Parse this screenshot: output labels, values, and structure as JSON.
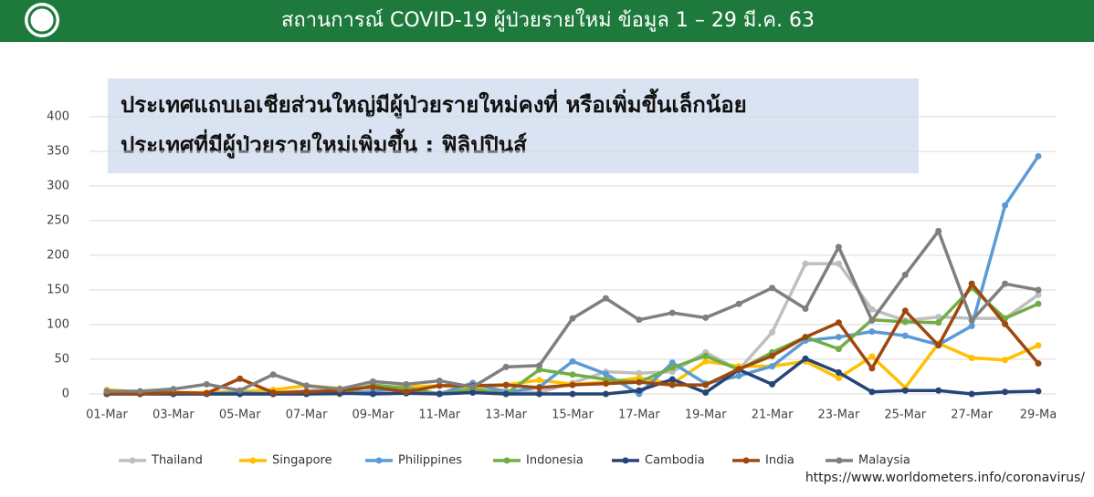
{
  "chart_data": {
    "type": "line",
    "title": "สถานการณ์ COVID-19 ผู้ป่วยรายใหม่ ข้อมูล 1 – 29 มี.ค. 63",
    "annotation": [
      "ประเทศแถบเอเชียส่วนใหญ่มีผู้ป่วยรายใหม่คงที่ หรือเพิ่มขึ้นเล็กน้อย",
      "ประเทศที่มีผู้ป่วยรายใหม่เพิ่มขึ้น : ฟิลิปปินส์"
    ],
    "source": "https://www.worldometers.info/coronavirus/",
    "categories": [
      "01-Mar",
      null,
      "03-Mar",
      null,
      "05-Mar",
      null,
      "07-Mar",
      null,
      "09-Mar",
      null,
      "11-Mar",
      null,
      "13-Mar",
      null,
      "15-Mar",
      null,
      "17-Mar",
      null,
      "19-Mar",
      null,
      "21-Mar",
      null,
      "23-Mar",
      null,
      "25-Mar",
      null,
      "27-Mar",
      null,
      "29-Ma"
    ],
    "ylim": [
      0,
      400
    ],
    "yticks": [
      0,
      50,
      100,
      150,
      200,
      250,
      300,
      350,
      400
    ],
    "grid": true,
    "legend": "bottom",
    "series": [
      {
        "name": "Thailand",
        "color": "#bfbfbf",
        "values": [
          5,
          3,
          2,
          1,
          1,
          1,
          5,
          7,
          1,
          3,
          1,
          11,
          5,
          2,
          16,
          32,
          30,
          32,
          60,
          35,
          89,
          188,
          188,
          122,
          106,
          111,
          109,
          109,
          143
        ]
      },
      {
        "name": "Singapore",
        "color": "#ffc000",
        "values": [
          6,
          3,
          2,
          2,
          4,
          6,
          12,
          8,
          10,
          10,
          12,
          9,
          13,
          20,
          14,
          17,
          23,
          15,
          47,
          40,
          40,
          47,
          23,
          54,
          9,
          73,
          52,
          49,
          70
        ]
      },
      {
        "name": "Philippines",
        "color": "#5b9bd5",
        "values": [
          0,
          0,
          0,
          0,
          2,
          0,
          0,
          0,
          4,
          9,
          0,
          16,
          2,
          10,
          47,
          29,
          0,
          45,
          15,
          26,
          40,
          77,
          82,
          90,
          84,
          71,
          98,
          272,
          343
        ]
      },
      {
        "name": "Indonesia",
        "color": "#70ad47",
        "values": [
          0,
          2,
          0,
          0,
          0,
          0,
          2,
          0,
          13,
          8,
          0,
          7,
          0,
          35,
          28,
          21,
          17,
          38,
          55,
          35,
          60,
          82,
          65,
          107,
          104,
          103,
          153,
          109,
          130
        ]
      },
      {
        "name": "Cambodia",
        "color": "#264478",
        "values": [
          0,
          0,
          0,
          0,
          0,
          0,
          0,
          1,
          0,
          1,
          0,
          2,
          0,
          0,
          0,
          0,
          5,
          21,
          2,
          35,
          14,
          51,
          31,
          3,
          5,
          5,
          0,
          3,
          4
        ]
      },
      {
        "name": "India",
        "color": "#9e480e",
        "values": [
          1,
          0,
          2,
          1,
          22,
          2,
          3,
          5,
          10,
          3,
          12,
          12,
          13,
          9,
          13,
          15,
          17,
          13,
          13,
          36,
          55,
          82,
          103,
          37,
          120,
          70,
          159,
          101,
          44
        ]
      },
      {
        "name": "Malaysia",
        "color": "#7f7f7f",
        "values": [
          4,
          4,
          7,
          14,
          5,
          28,
          12,
          7,
          18,
          14,
          19,
          10,
          39,
          41,
          109,
          138,
          107,
          117,
          110,
          130,
          153,
          123,
          212,
          106,
          172,
          235,
          106,
          159,
          150
        ]
      }
    ]
  }
}
